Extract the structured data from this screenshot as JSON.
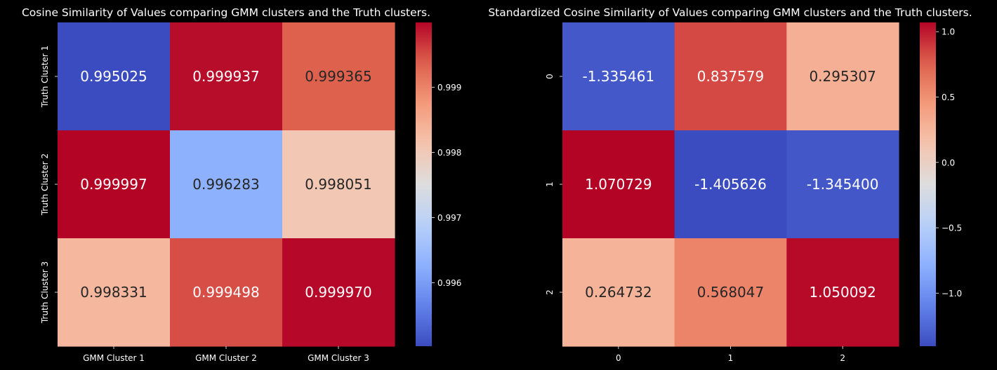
{
  "chart_data": [
    {
      "type": "heatmap",
      "title": "Cosine Similarity of Values comparing GMM clusters and the Truth clusters.",
      "x_tick_labels": [
        "GMM Cluster 1",
        "GMM Cluster 2",
        "GMM Cluster 3"
      ],
      "y_tick_labels": [
        "Truth Cluster 1",
        "Truth Cluster 2",
        "Truth Cluster 3"
      ],
      "values": [
        [
          0.995025,
          0.999937,
          0.999365
        ],
        [
          0.999997,
          0.996283,
          0.998051
        ],
        [
          0.998331,
          0.999498,
          0.99997
        ]
      ],
      "cell_labels": [
        [
          "0.995025",
          "0.999937",
          "0.999365"
        ],
        [
          "0.999997",
          "0.996283",
          "0.998051"
        ],
        [
          "0.998331",
          "0.999498",
          "0.999970"
        ]
      ],
      "colormap": "coolwarm",
      "colorbar": {
        "range": [
          0.995025,
          0.999997
        ],
        "ticks": [
          0.996,
          0.997,
          0.998,
          0.999
        ],
        "tick_labels": [
          "0.996",
          "0.997",
          "0.998",
          "0.999"
        ]
      }
    },
    {
      "type": "heatmap",
      "title": "Standardized Cosine Similarity of Values comparing GMM clusters and the Truth clusters.",
      "x_tick_labels": [
        "0",
        "1",
        "2"
      ],
      "y_tick_labels": [
        "0",
        "1",
        "2"
      ],
      "values": [
        [
          -1.335461,
          0.837579,
          0.295307
        ],
        [
          1.070729,
          -1.405626,
          -1.3454
        ],
        [
          0.264732,
          0.568047,
          1.050092
        ]
      ],
      "cell_labels": [
        [
          "-1.335461",
          "0.837579",
          "0.295307"
        ],
        [
          "1.070729",
          "-1.405626",
          "-1.345400"
        ],
        [
          "0.264732",
          "0.568047",
          "1.050092"
        ]
      ],
      "colormap": "coolwarm",
      "colorbar": {
        "range": [
          -1.405626,
          1.070729
        ],
        "ticks": [
          -1.0,
          -0.5,
          0.0,
          0.5,
          1.0
        ],
        "tick_labels": [
          "−1.0",
          "−0.5",
          "0.0",
          "0.5",
          "1.0"
        ]
      }
    }
  ]
}
